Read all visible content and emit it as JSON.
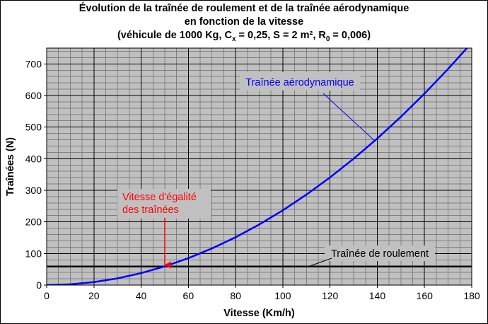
{
  "title": {
    "line1": "Évolution de la traînée de roulement et de la traînée aérodynamique",
    "line2": "en fonction de la vitesse",
    "line3_prefix": "(véhicule de 1000 Kg, C",
    "line3_sub1": "x",
    "line3_mid": " = 0,25, S = 2 m², R",
    "line3_sub2": "0",
    "line3_suffix": " = 0,006)"
  },
  "colors": {
    "plot_background": "#c0c0c0",
    "aero_curve": "#0000ff",
    "rolling_line": "#000000",
    "annotation_red": "#ff0000",
    "aero_label": "#0000ff"
  },
  "chart_data": {
    "type": "line",
    "title": "Évolution de la traînée de roulement et de la traînée aérodynamique en fonction de la vitesse (véhicule de 1000 Kg, Cx = 0,25, S = 2 m², R0 = 0,006)",
    "xlabel": "Vitesse (Km/h)",
    "ylabel": "Traînées (N)",
    "xlim": [
      0,
      180
    ],
    "ylim": [
      0,
      750
    ],
    "xticks": [
      0,
      20,
      40,
      60,
      80,
      100,
      120,
      140,
      160,
      180
    ],
    "yticks": [
      0,
      100,
      200,
      300,
      400,
      500,
      600,
      700
    ],
    "grid": true,
    "series": [
      {
        "name": "Traînée aérodynamique",
        "x": [
          0,
          10,
          20,
          30,
          40,
          50,
          60,
          70,
          80,
          90,
          100,
          110,
          120,
          130,
          140,
          150,
          160,
          170,
          180
        ],
        "y": [
          0,
          2.4,
          9.5,
          21.3,
          37.9,
          59.2,
          85.2,
          116.0,
          151.5,
          191.7,
          236.7,
          286.4,
          340.9,
          400.0,
          463.9,
          532.6,
          606.0,
          684.1,
          767.0
        ]
      },
      {
        "name": "Traînée de roulement",
        "x": [
          0,
          180
        ],
        "y": [
          58.9,
          58.9
        ]
      }
    ],
    "annotations": [
      {
        "text_lines": [
          "Traînée aérodynamique"
        ],
        "color": "#0000ff",
        "points_to": {
          "x": 139,
          "y": 456
        }
      },
      {
        "text_lines": [
          "Traînée de roulement"
        ],
        "color": "#000000",
        "points_to": {
          "x": 111,
          "y": 59
        }
      },
      {
        "text_lines": [
          "Vitesse d'égalité",
          "des traînées"
        ],
        "color": "#ff0000",
        "points_to": {
          "x": 50,
          "y": 59
        }
      }
    ]
  }
}
